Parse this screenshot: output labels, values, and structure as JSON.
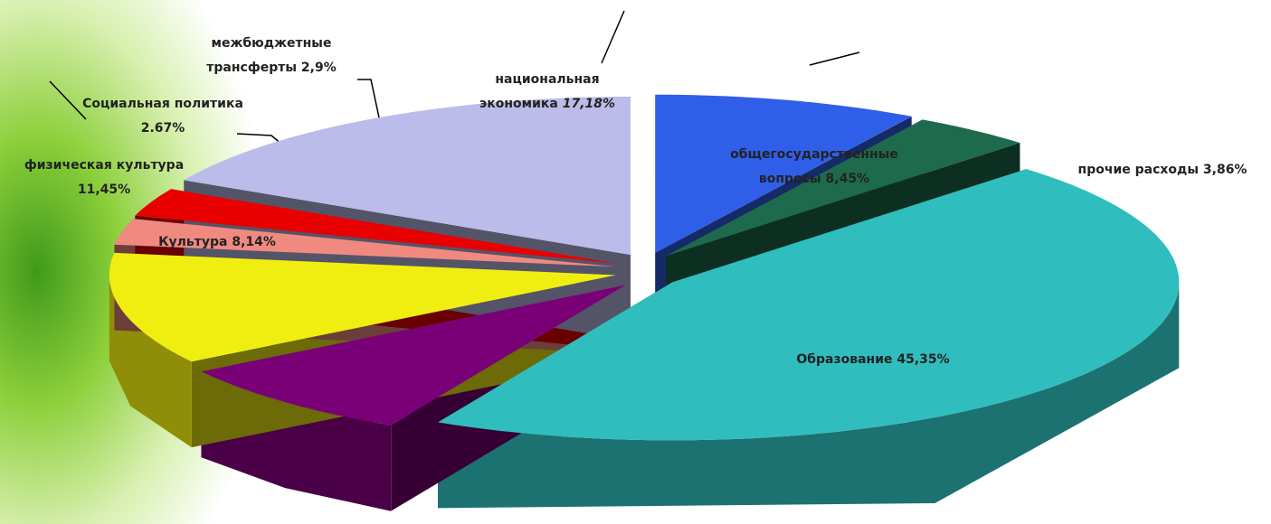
{
  "chart_data": {
    "type": "pie3d",
    "categories": [
      "общегосударственные вопросы",
      "прочие расходы",
      "Образование",
      "Культура",
      "физическая культура",
      "Социальная политика",
      "межбюджетные трансферты",
      "национальная экономика"
    ],
    "values": [
      8.45,
      3.86,
      45.35,
      8.14,
      11.45,
      2.67,
      2.9,
      17.18
    ],
    "value_labels": [
      "8,45%",
      "3,86%",
      "45,35%",
      "8,14%",
      "11,45%",
      "2.67%",
      "2,9%",
      "17,18%"
    ],
    "colors": [
      "#2f5fe8",
      "#1e6a4c",
      "#30bdbd",
      "#7a0077",
      "#f0ee10",
      "#f08a80",
      "#e80000",
      "#bcbcea"
    ]
  }
}
